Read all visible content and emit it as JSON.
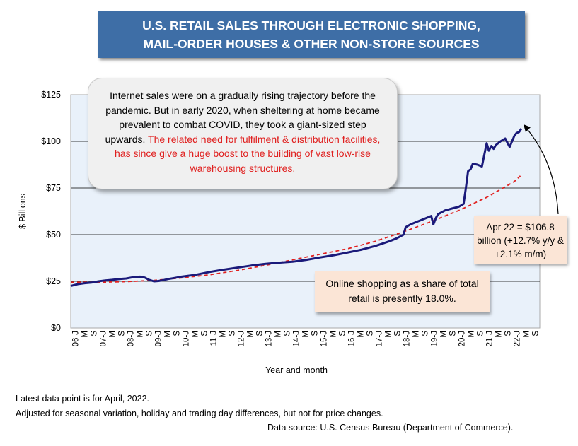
{
  "title_line1": "U.S. RETAIL SALES THROUGH ELECTRONIC SHOPPING,",
  "title_line2": "MAIL-ORDER HOUSES & OTHER NON-STORE SOURCES",
  "callouts": {
    "main_black": "Internet sales were on a gradually rising trajectory before the pandemic. But in early 2020, when sheltering at home became prevalent to combat COVID, they took a giant-sized step upwards.",
    "main_red": "The related need for fulfilment & distribution facilities, has since give a huge boost to the building of vast low-rise warehousing structures.",
    "latest": "Apr 22 = $106.8 billion (+12.7% y/y & +2.1% m/m)",
    "share": "Online shopping as a share of total retail is presently 18.0%."
  },
  "footnotes": {
    "line1": "Latest data point is for April, 2022.",
    "line2": "Adjusted for seasonal variation, holiday and trading day differences, but not for price changes.",
    "source": "Data source: U.S. Census Bureau (Department of Commerce)."
  },
  "colors": {
    "title_bg": "#3e6ea6",
    "series": "#1a1a7a",
    "trend": "#e0201f",
    "plot_bg": "#e9f1fa",
    "callout_bg": "#fbe5d6"
  },
  "chart_data": {
    "type": "line",
    "title": "U.S. RETAIL SALES THROUGH ELECTRONIC SHOPPING, MAIL-ORDER HOUSES & OTHER NON-STORE SOURCES",
    "xlabel": "Year and month",
    "ylabel": "$ Billions",
    "ylim": [
      0,
      125
    ],
    "yticks": [
      0,
      25,
      50,
      75,
      100,
      125
    ],
    "ytick_labels": [
      "$0",
      "$25",
      "$50",
      "$75",
      "$100",
      "$125"
    ],
    "xlim": [
      2006.0,
      2022.917
    ],
    "xtick_labels": [
      "06-J",
      "M",
      "S",
      "07-J",
      "M",
      "S",
      "08-J",
      "M",
      "S",
      "09-J",
      "M",
      "S",
      "10-J",
      "M",
      "S",
      "11-J",
      "M",
      "S",
      "12-J",
      "M",
      "S",
      "13-J",
      "M",
      "S",
      "14-J",
      "M",
      "S",
      "15-J",
      "M",
      "S",
      "16-J",
      "M",
      "S",
      "17-J",
      "M",
      "S",
      "18-J",
      "M",
      "S",
      "19-J",
      "M",
      "S",
      "20-J",
      "M",
      "S",
      "21-J",
      "M",
      "S",
      "22-J",
      "M",
      "S"
    ],
    "grid": "horizontal",
    "series": [
      {
        "name": "",
        "x": [
          2006.0,
          2006.25,
          2006.5,
          2006.75,
          2007.0,
          2007.25,
          2007.5,
          2007.75,
          2008.0,
          2008.25,
          2008.5,
          2008.67,
          2008.83,
          2009.0,
          2009.17,
          2009.33,
          2009.5,
          2009.75,
          2010.0,
          2010.5,
          2011.0,
          2011.5,
          2012.0,
          2012.5,
          2013.0,
          2013.5,
          2014.0,
          2014.5,
          2015.0,
          2015.5,
          2016.0,
          2016.5,
          2017.0,
          2017.5,
          2017.75,
          2018.0,
          2018.08,
          2018.25,
          2018.5,
          2018.75,
          2019.0,
          2019.08,
          2019.17,
          2019.25,
          2019.5,
          2019.75,
          2020.0,
          2020.17,
          2020.25,
          2020.33,
          2020.42,
          2020.5,
          2020.67,
          2020.83,
          2021.0,
          2021.08,
          2021.17,
          2021.25,
          2021.33,
          2021.42,
          2021.5,
          2021.67,
          2021.83,
          2022.0,
          2022.08,
          2022.17,
          2022.25
        ],
        "values": [
          22.5,
          23.5,
          24.0,
          24.3,
          25.0,
          25.5,
          25.8,
          26.2,
          26.5,
          27.2,
          27.5,
          27.0,
          25.8,
          25.0,
          25.2,
          25.6,
          26.2,
          26.8,
          27.5,
          28.5,
          30.0,
          31.2,
          32.3,
          33.4,
          34.3,
          35.0,
          35.5,
          36.5,
          37.8,
          39.0,
          40.5,
          42.0,
          44.0,
          46.5,
          48.0,
          50.0,
          54.0,
          55.5,
          57.0,
          58.5,
          60.0,
          55.5,
          59.0,
          61.0,
          63.0,
          64.0,
          65.0,
          66.5,
          75.0,
          84.0,
          85.0,
          88.0,
          87.5,
          86.5,
          99.0,
          95.0,
          97.5,
          96.0,
          98.0,
          99.0,
          100.0,
          101.5,
          97.0,
          103.0,
          104.5,
          105.0,
          106.8
        ]
      },
      {
        "name": "",
        "x": [
          2006.0,
          2007.0,
          2008.0,
          2009.0,
          2010.0,
          2011.0,
          2012.0,
          2013.0,
          2014.0,
          2015.0,
          2016.0,
          2017.0,
          2018.0,
          2019.0,
          2020.0,
          2021.0,
          2022.0,
          2022.25
        ],
        "values": [
          24.5,
          24.5,
          24.8,
          25.5,
          26.8,
          28.5,
          30.8,
          33.5,
          36.5,
          39.5,
          42.5,
          46.5,
          51.5,
          57.0,
          63.0,
          70.0,
          78.5,
          82.0
        ]
      }
    ]
  }
}
